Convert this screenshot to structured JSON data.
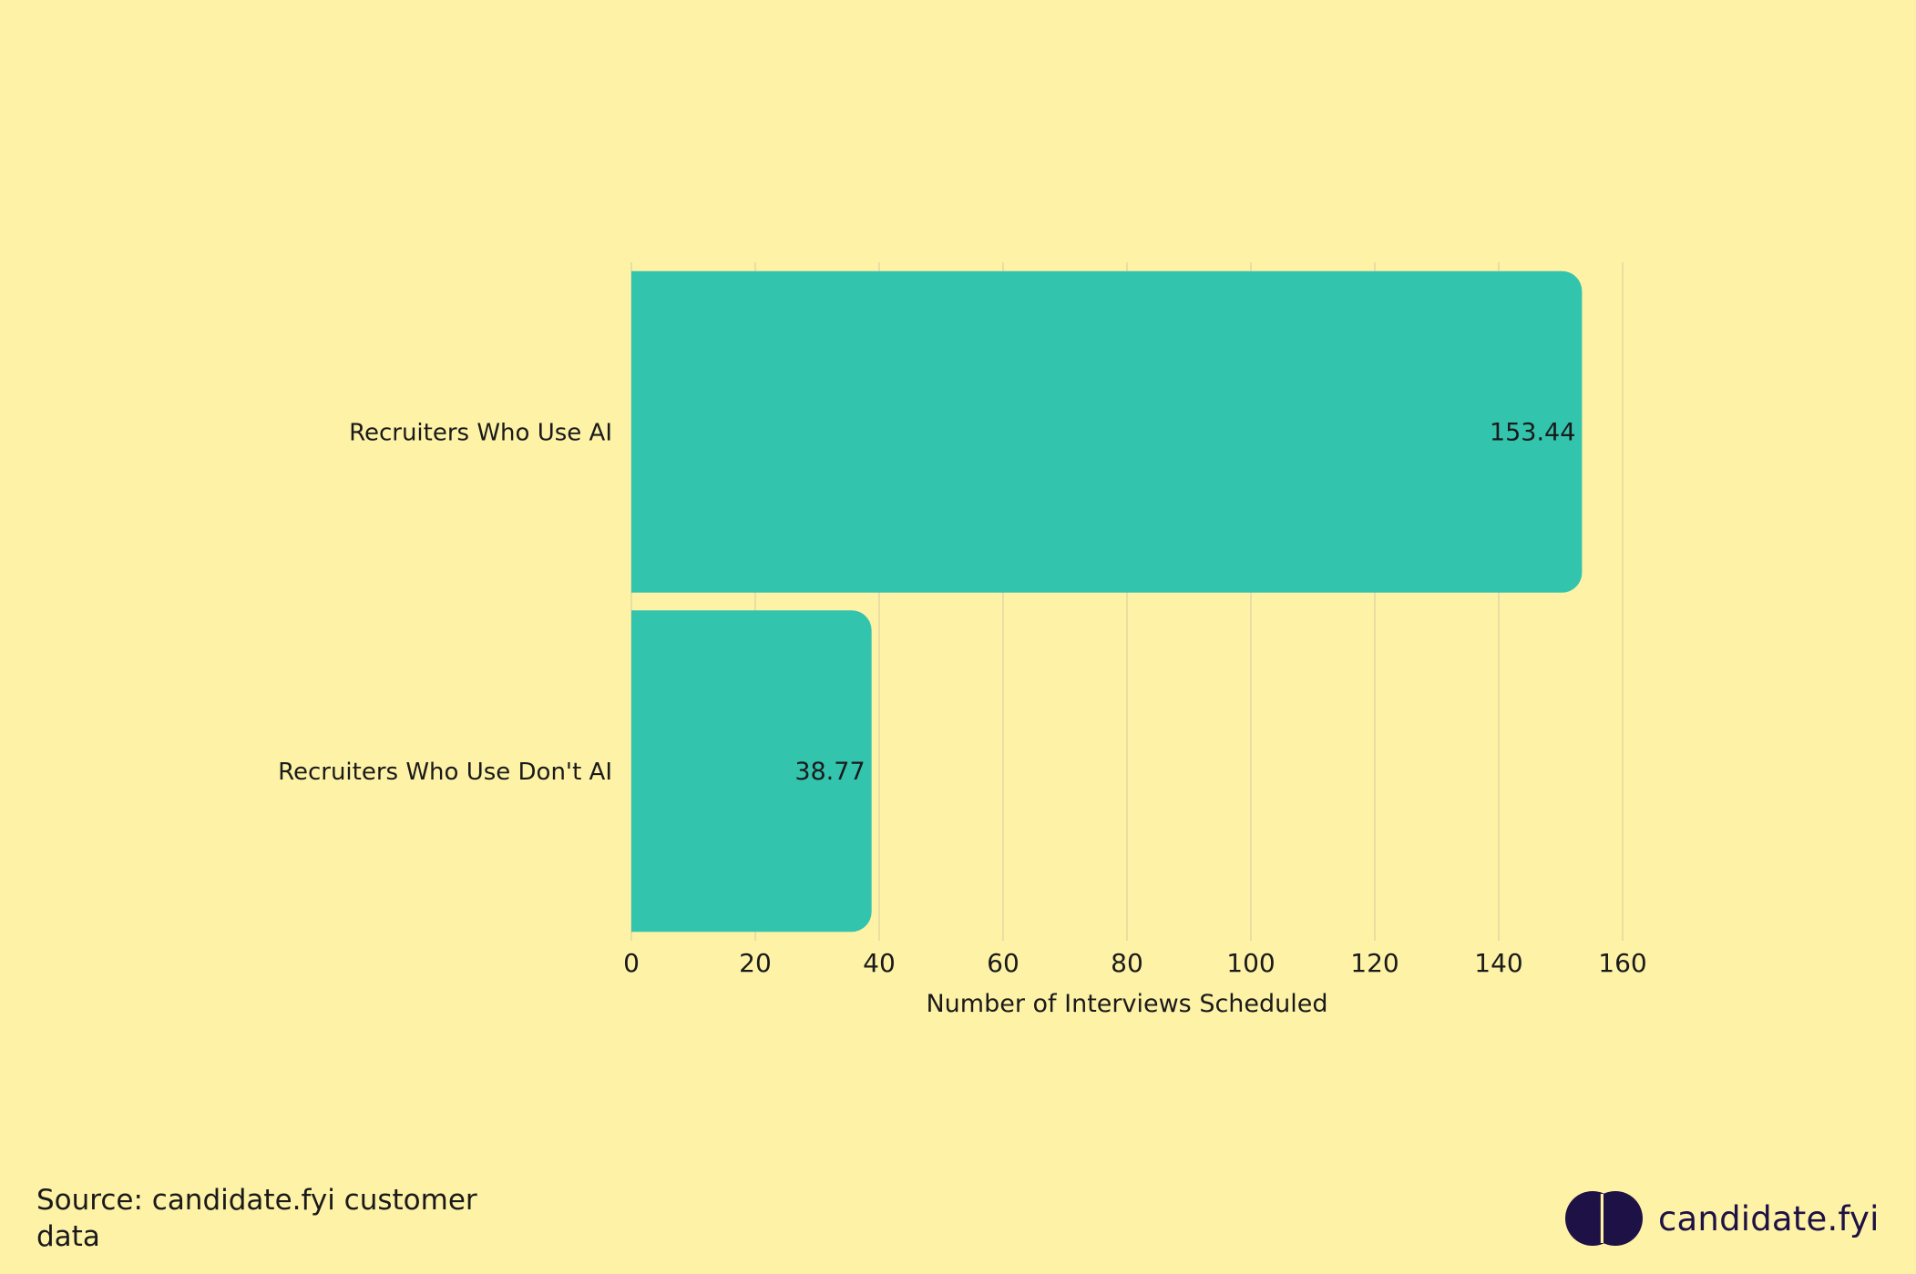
{
  "chart_data": {
    "type": "bar",
    "orientation": "horizontal",
    "categories": [
      "Recruiters Who Use AI",
      "Recruiters Who Use Don't AI"
    ],
    "values": [
      153.44,
      38.77
    ],
    "value_labels": [
      "153.44",
      "38.77"
    ],
    "xlabel": "Number of Interviews Scheduled",
    "ylabel": "",
    "xlim": [
      0,
      160
    ],
    "ticks": [
      0,
      20,
      40,
      60,
      80,
      100,
      120,
      140,
      160
    ],
    "tick_labels": [
      "0",
      "20",
      "40",
      "60",
      "80",
      "100",
      "120",
      "140",
      "160"
    ],
    "grid": "vertical",
    "legend": "none",
    "colors": {
      "bar": "#33C4AE",
      "background": "#FDF2A6",
      "grid": "#D9D3A0",
      "text": "#1a1a1a"
    }
  },
  "footer": {
    "source": "Source: candidate.fyi customer data",
    "brand": "candidate.fyi",
    "brand_icon": "candidate-fyi-logo-icon",
    "brand_color": "#1E1145"
  }
}
